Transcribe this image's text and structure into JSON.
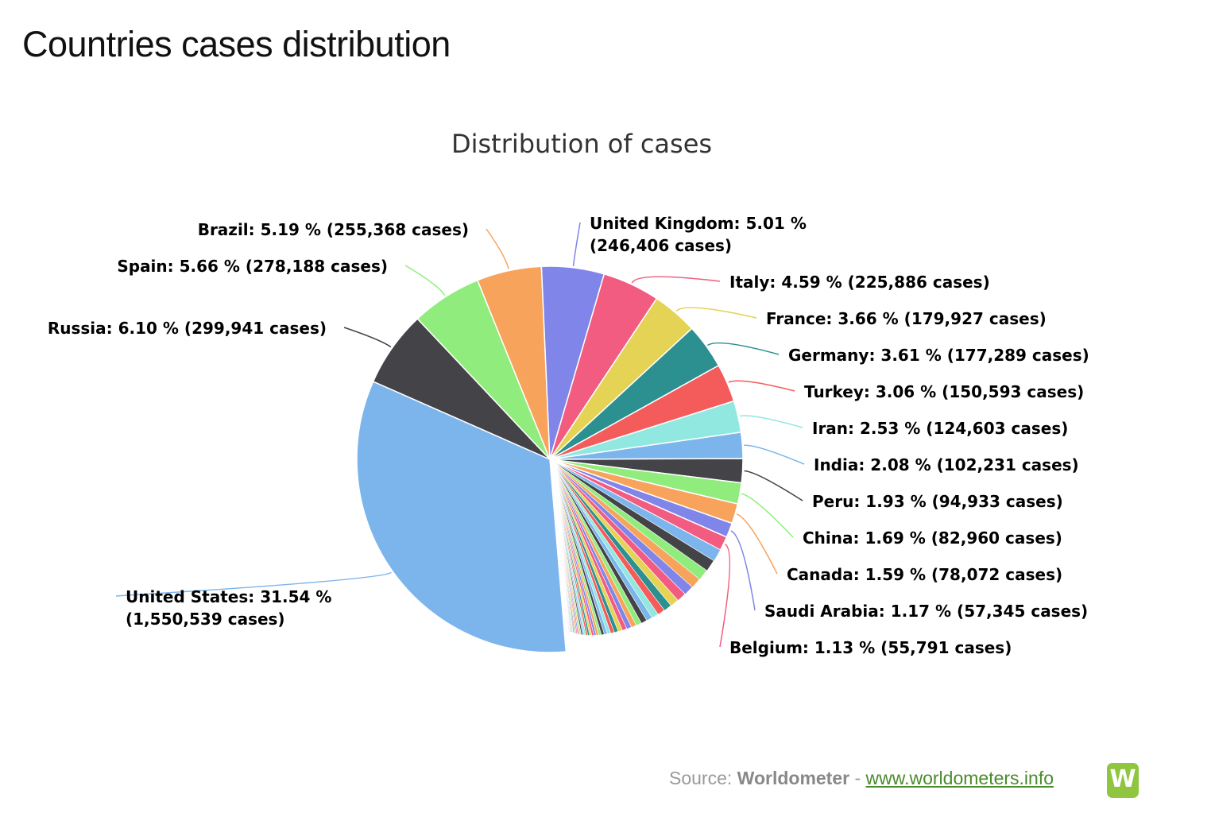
{
  "page": {
    "title": "Countries cases distribution"
  },
  "source": {
    "prefix": "Source:",
    "name": "Worldometer",
    "separator": "-",
    "link": "www.worldometers.info",
    "logo_letter": "W"
  },
  "chart_data": {
    "type": "pie",
    "title": "Distribution of cases",
    "unit_label": "cases",
    "start_angle_deg": 0,
    "slices": [
      {
        "name": "United States",
        "label": "United States: 31.54 % (1,550,539 cases)",
        "label_lines": [
          "United States: 31.54 %",
          "(1,550,539 cases)"
        ],
        "percent": 31.54,
        "cases": 1550539,
        "color": "#7cb5ec",
        "labeled": true
      },
      {
        "name": "Russia",
        "label": "Russia: 6.10 % (299,941 cases)",
        "label_lines": [
          "Russia: 6.10 % (299,941 cases)"
        ],
        "percent": 6.1,
        "cases": 299941,
        "color": "#434348",
        "labeled": true
      },
      {
        "name": "Spain",
        "label": "Spain: 5.66 % (278,188 cases)",
        "label_lines": [
          "Spain: 5.66 % (278,188 cases)"
        ],
        "percent": 5.66,
        "cases": 278188,
        "color": "#90ed7d",
        "labeled": true
      },
      {
        "name": "Brazil",
        "label": "Brazil: 5.19 % (255,368 cases)",
        "label_lines": [
          "Brazil: 5.19 % (255,368 cases)"
        ],
        "percent": 5.19,
        "cases": 255368,
        "color": "#f7a35c",
        "labeled": true
      },
      {
        "name": "United Kingdom",
        "label": "United Kingdom: 5.01 % (246,406 cases)",
        "label_lines": [
          "United Kingdom: 5.01 %",
          "(246,406 cases)"
        ],
        "percent": 5.01,
        "cases": 246406,
        "color": "#8085e9",
        "labeled": true
      },
      {
        "name": "Italy",
        "label": "Italy: 4.59 % (225,886 cases)",
        "label_lines": [
          "Italy: 4.59 % (225,886 cases)"
        ],
        "percent": 4.59,
        "cases": 225886,
        "color": "#f15c80",
        "labeled": true
      },
      {
        "name": "France",
        "label": "France: 3.66 % (179,927 cases)",
        "label_lines": [
          "France: 3.66 % (179,927 cases)"
        ],
        "percent": 3.66,
        "cases": 179927,
        "color": "#e4d354",
        "labeled": true
      },
      {
        "name": "Germany",
        "label": "Germany: 3.61 % (177,289 cases)",
        "label_lines": [
          "Germany: 3.61 % (177,289 cases)"
        ],
        "percent": 3.61,
        "cases": 177289,
        "color": "#2b908f",
        "labeled": true
      },
      {
        "name": "Turkey",
        "label": "Turkey: 3.06 % (150,593 cases)",
        "label_lines": [
          "Turkey: 3.06 % (150,593 cases)"
        ],
        "percent": 3.06,
        "cases": 150593,
        "color": "#f45b5b",
        "labeled": true
      },
      {
        "name": "Iran",
        "label": "Iran: 2.53 % (124,603 cases)",
        "label_lines": [
          "Iran: 2.53 % (124,603 cases)"
        ],
        "percent": 2.53,
        "cases": 124603,
        "color": "#91e8e1",
        "labeled": true
      },
      {
        "name": "India",
        "label": "India: 2.08 % (102,231 cases)",
        "label_lines": [
          "India: 2.08 % (102,231 cases)"
        ],
        "percent": 2.08,
        "cases": 102231,
        "color": "#7cb5ec",
        "labeled": true
      },
      {
        "name": "Peru",
        "label": "Peru: 1.93 % (94,933 cases)",
        "label_lines": [
          "Peru: 1.93 % (94,933 cases)"
        ],
        "percent": 1.93,
        "cases": 94933,
        "color": "#434348",
        "labeled": true
      },
      {
        "name": "China",
        "label": "China: 1.69 % (82,960 cases)",
        "label_lines": [
          "China: 1.69 % (82,960 cases)"
        ],
        "percent": 1.69,
        "cases": 82960,
        "color": "#90ed7d",
        "labeled": true
      },
      {
        "name": "Canada",
        "label": "Canada: 1.59 % (78,072 cases)",
        "label_lines": [
          "Canada: 1.59 % (78,072 cases)"
        ],
        "percent": 1.59,
        "cases": 78072,
        "color": "#f7a35c",
        "labeled": true
      },
      {
        "name": "Saudi Arabia",
        "label": "Saudi Arabia: 1.17 % (57,345 cases)",
        "label_lines": [
          "Saudi Arabia: 1.17 % (57,345 cases)"
        ],
        "percent": 1.17,
        "cases": 57345,
        "color": "#8085e9",
        "labeled": true
      },
      {
        "name": "Belgium",
        "label": "Belgium: 1.13 % (55,791 cases)",
        "label_lines": [
          "Belgium: 1.13 % (55,791 cases)"
        ],
        "percent": 1.13,
        "cases": 55791,
        "color": "#f15c80",
        "labeled": true
      }
    ],
    "minor_slices_percent": [
      1.0,
      0.95,
      0.9,
      0.85,
      0.8,
      0.75,
      0.7,
      0.65,
      0.6,
      0.55,
      0.5,
      0.48,
      0.45,
      0.42,
      0.4,
      0.38,
      0.35,
      0.33,
      0.3,
      0.28,
      0.26,
      0.24,
      0.22,
      0.2,
      0.19,
      0.18,
      0.17,
      0.16,
      0.15,
      0.14,
      0.13,
      0.12,
      0.11,
      0.1,
      0.1,
      0.09,
      0.09,
      0.08,
      0.08,
      0.07,
      0.07,
      0.06,
      0.06,
      0.05,
      0.05,
      0.05,
      0.04,
      0.04,
      0.04,
      0.03,
      0.03,
      0.03,
      0.03,
      0.02,
      0.02,
      0.02,
      0.02,
      0.02,
      0.01,
      0.01
    ],
    "palette": [
      "#7cb5ec",
      "#434348",
      "#90ed7d",
      "#f7a35c",
      "#8085e9",
      "#f15c80",
      "#e4d354",
      "#2b908f",
      "#f45b5b",
      "#91e8e1"
    ]
  }
}
